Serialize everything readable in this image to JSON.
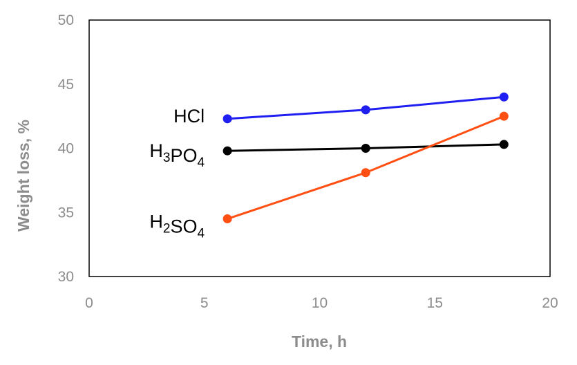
{
  "chart_data": {
    "type": "line",
    "xlabel": "Time, h",
    "ylabel": "Weight loss, %",
    "xlim": [
      0,
      20
    ],
    "ylim": [
      30,
      50
    ],
    "xticks": [
      0,
      5,
      10,
      15,
      20
    ],
    "yticks": [
      30,
      35,
      40,
      45,
      50
    ],
    "grid": false,
    "legend": "inline labels at left of lines",
    "series": [
      {
        "name": "HCl",
        "label_parts": [
          {
            "t": "HCl"
          }
        ],
        "color": "#1f1ff2",
        "points": [
          [
            6,
            42.3
          ],
          [
            12,
            43.0
          ],
          [
            18,
            44.0
          ]
        ]
      },
      {
        "name": "H3PO4",
        "label_parts": [
          {
            "t": "H"
          },
          {
            "t": "3",
            "sub": true
          },
          {
            "t": "PO"
          },
          {
            "t": "4",
            "sub": true
          }
        ],
        "color": "#000000",
        "points": [
          [
            6,
            39.8
          ],
          [
            12,
            40.0
          ],
          [
            18,
            40.3
          ]
        ]
      },
      {
        "name": "H2SO4",
        "label_parts": [
          {
            "t": "H"
          },
          {
            "t": "2",
            "sub": true
          },
          {
            "t": "SO"
          },
          {
            "t": "4",
            "sub": true
          }
        ],
        "color": "#ff4f12",
        "points": [
          [
            6,
            34.5
          ],
          [
            12,
            38.1
          ],
          [
            18,
            42.5
          ]
        ]
      }
    ]
  }
}
